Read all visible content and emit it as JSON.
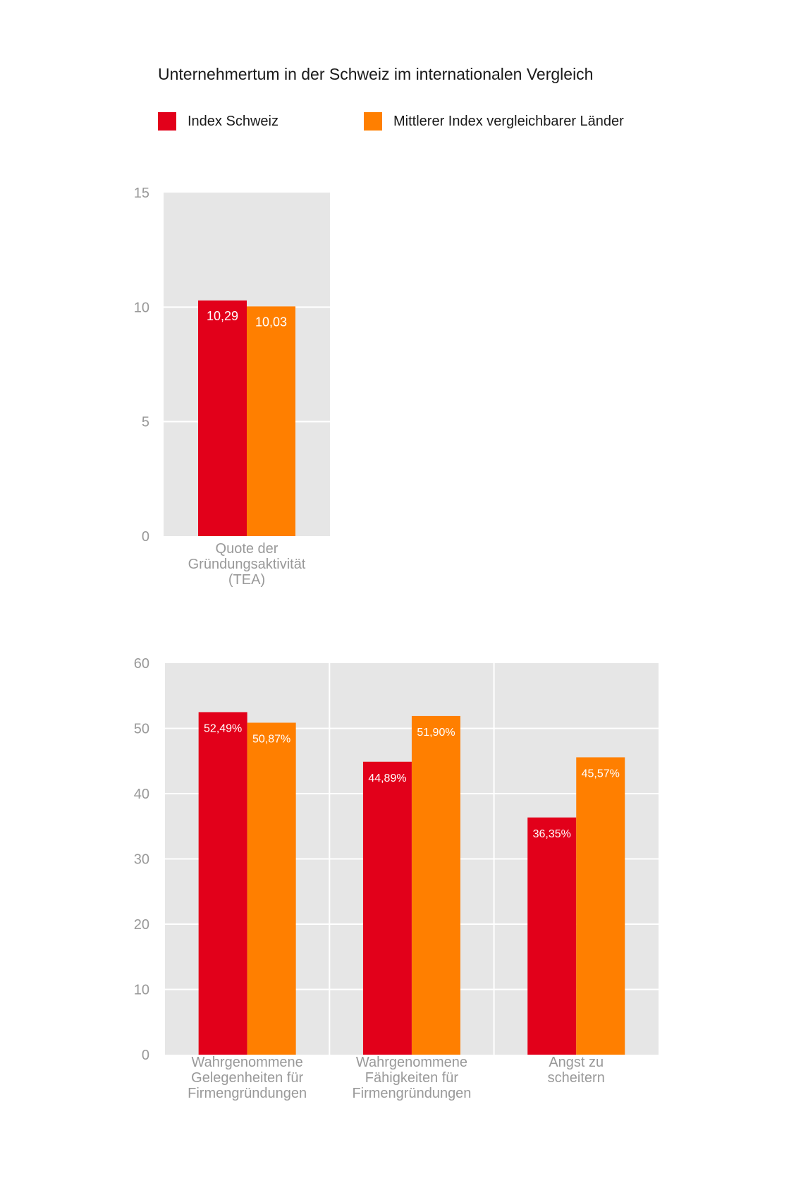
{
  "title": "Unternehmertum in der Schweiz im internationalen Vergleich",
  "legend": [
    {
      "label": "Index Schweiz",
      "color": "#e2001a"
    },
    {
      "label": "Mittlerer Index vergleichbarer Länder",
      "color": "#ff7f00"
    }
  ],
  "chart_data": [
    {
      "type": "bar",
      "title": "",
      "xlabel": "",
      "ylabel": "",
      "ylim": [
        0,
        15
      ],
      "yticks": [
        "0",
        "5",
        "10",
        "15"
      ],
      "categories": [
        [
          "Quote der",
          "Gründungsaktivität",
          "(TEA)"
        ]
      ],
      "series": [
        {
          "name": "Index Schweiz",
          "values": [
            10.29
          ],
          "labels": [
            "10,29"
          ],
          "color": "#e2001a"
        },
        {
          "name": "Mittlerer Index vergleichbarer Länder",
          "values": [
            10.03
          ],
          "labels": [
            "10,03"
          ],
          "color": "#ff7f00"
        }
      ],
      "grid": true
    },
    {
      "type": "bar",
      "title": "",
      "xlabel": "",
      "ylabel": "",
      "ylim": [
        0,
        60
      ],
      "yticks": [
        "0",
        "10",
        "20",
        "30",
        "40",
        "50",
        "60"
      ],
      "categories": [
        [
          "Wahrgenommene",
          "Gelegenheiten für",
          "Firmengründungen"
        ],
        [
          "Wahrgenommene",
          "Fähigkeiten für",
          "Firmengründungen"
        ],
        [
          "Angst zu",
          "scheitern"
        ]
      ],
      "series": [
        {
          "name": "Index Schweiz",
          "values": [
            52.49,
            44.89,
            36.35
          ],
          "labels": [
            "52,49%",
            "44,89%",
            "36,35%"
          ],
          "color": "#e2001a"
        },
        {
          "name": "Mittlerer Index vergleichbarer Länder",
          "values": [
            50.87,
            51.9,
            45.57
          ],
          "labels": [
            "50,87%",
            "51,90%",
            "45,57%"
          ],
          "color": "#ff7f00"
        }
      ],
      "grid": true
    }
  ]
}
